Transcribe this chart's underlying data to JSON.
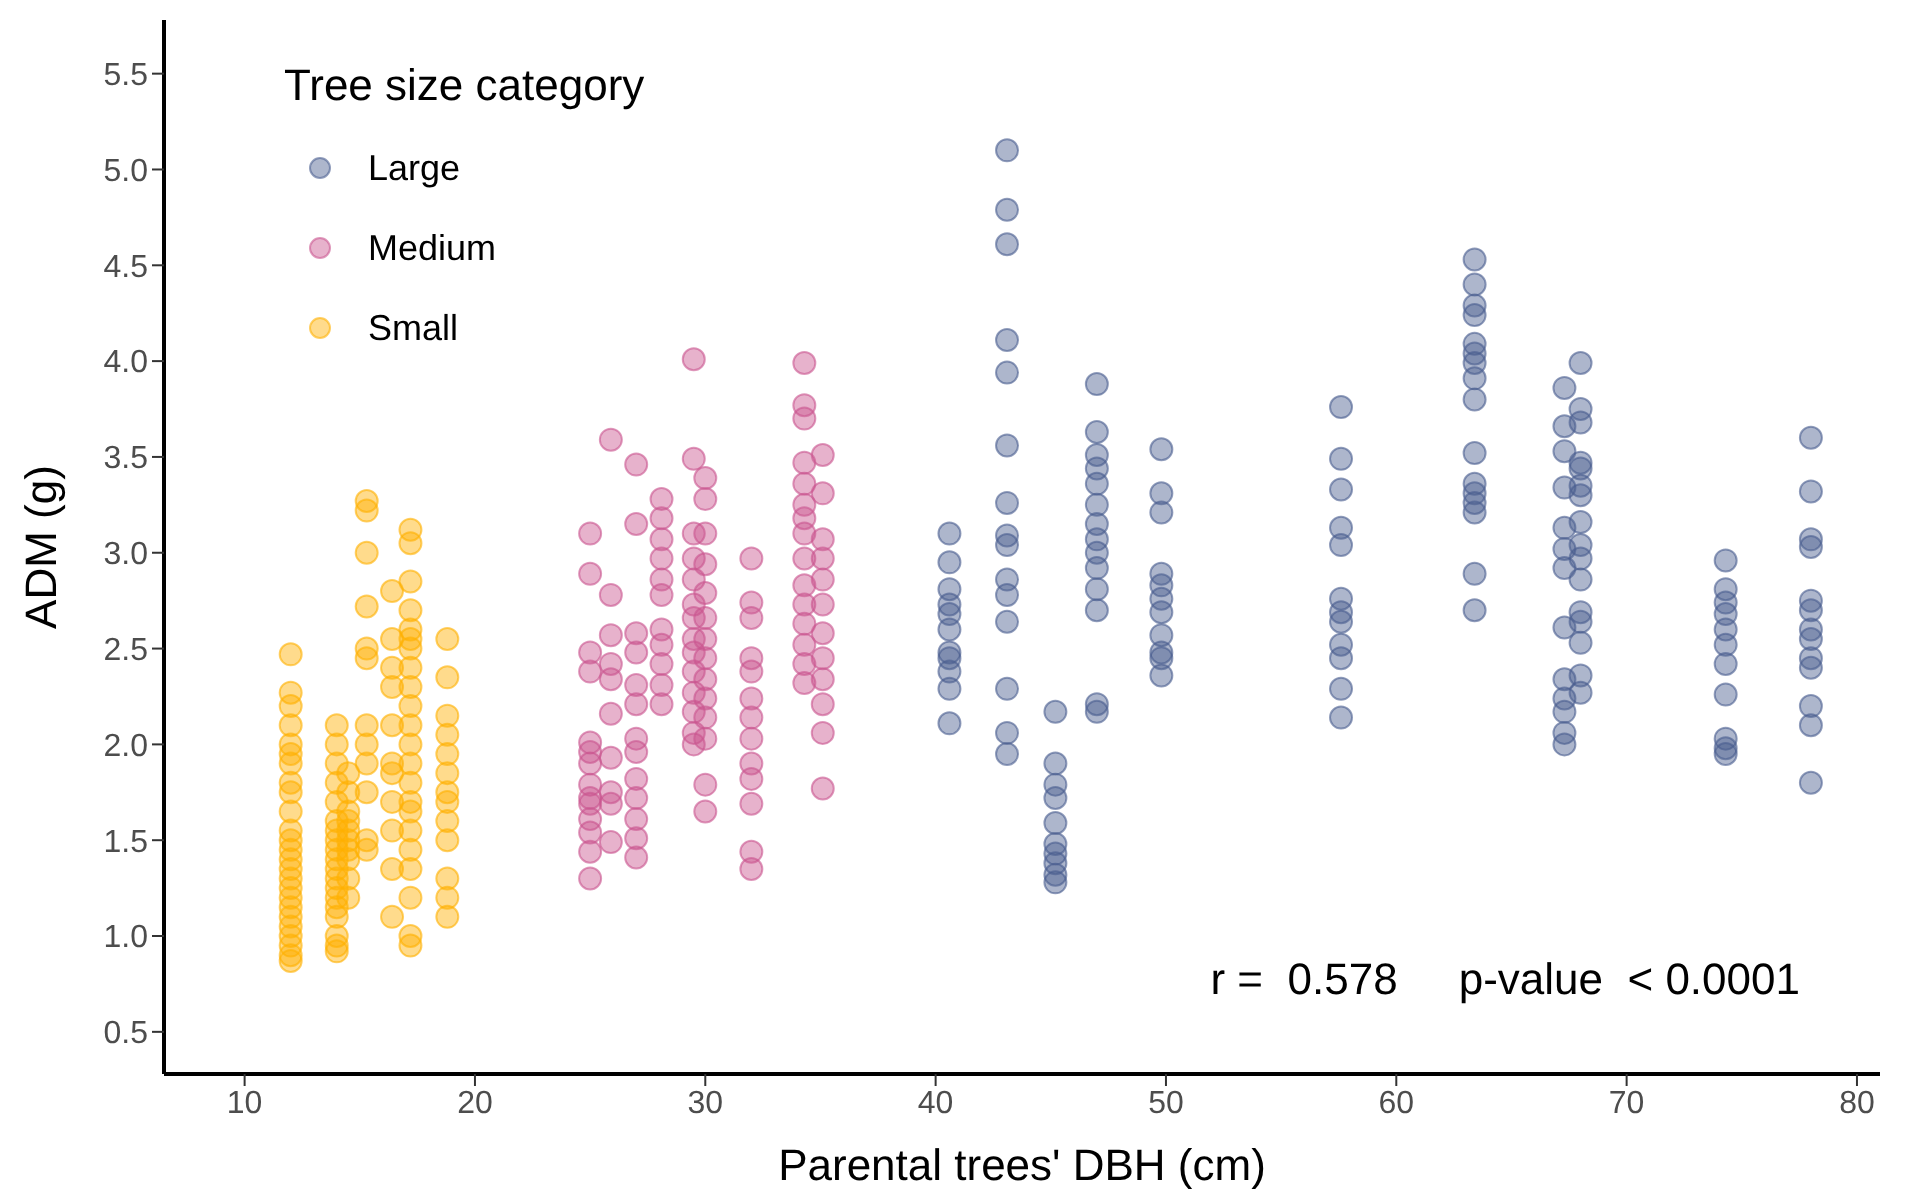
{
  "chart_data": {
    "type": "scatter",
    "xlabel": "Parental trees' DBH (cm)",
    "ylabel": "ADM (g)",
    "legend_title": "Tree size category",
    "legend": "top left",
    "grid": false,
    "marker": "circle",
    "xlim": [
      6.5,
      81
    ],
    "xticks": [
      10,
      20,
      30,
      40,
      50,
      60,
      70,
      80
    ],
    "ylim": [
      0.28,
      5.78
    ],
    "yticks": [
      0.5,
      {
        "value": 1,
        "label": "1.0"
      },
      1.5,
      {
        "value": 2,
        "label": "2.0"
      },
      2.5,
      {
        "value": 3,
        "label": "3.0"
      },
      3.5,
      {
        "value": 4,
        "label": "4.0"
      },
      4.5,
      {
        "value": 5,
        "label": "5.0"
      },
      5.5
    ],
    "annotations": [
      "r =  0.578     p-value  < 0.0001"
    ],
    "series": [
      {
        "name": "Large",
        "color": "#4a5d8f",
        "x": [
          40.6,
          40.6,
          40.6,
          40.6,
          40.6,
          40.6,
          40.6,
          40.6,
          40.6,
          40.6,
          40.6,
          43.1,
          43.1,
          43.1,
          43.1,
          43.1,
          43.1,
          43.1,
          43.1,
          43.1,
          43.1,
          43.1,
          43.1,
          43.1,
          43.1,
          43.1,
          45.2,
          45.2,
          45.2,
          45.2,
          45.2,
          45.2,
          45.2,
          45.2,
          45.2,
          45.2,
          47,
          47,
          47,
          47,
          47,
          47,
          47,
          47,
          47,
          47,
          47,
          47,
          47,
          47,
          49.8,
          49.8,
          49.8,
          49.8,
          49.8,
          49.8,
          49.8,
          49.8,
          49.8,
          49.8,
          49.8,
          57.6,
          57.6,
          57.6,
          57.6,
          57.6,
          57.6,
          57.6,
          57.6,
          57.6,
          57.6,
          57.6,
          57.6,
          63.4,
          63.4,
          63.4,
          63.4,
          63.4,
          63.4,
          63.4,
          63.4,
          63.4,
          63.4,
          63.4,
          63.4,
          63.4,
          63.4,
          63.4,
          63.4,
          67.3,
          67.3,
          67.3,
          67.3,
          67.3,
          67.3,
          67.3,
          67.3,
          67.3,
          67.3,
          67.3,
          67.3,
          67.3,
          68,
          68,
          68,
          68,
          68,
          68,
          68,
          68,
          68,
          68,
          68,
          68,
          68,
          68,
          68,
          68,
          74.3,
          74.3,
          74.3,
          74.3,
          74.3,
          74.3,
          74.3,
          74.3,
          74.3,
          74.3,
          74.3,
          78,
          78,
          78,
          78,
          78,
          78,
          78,
          78,
          78,
          78,
          78,
          78,
          78
        ],
        "values": [
          3.1,
          2.95,
          2.81,
          2.73,
          2.68,
          2.6,
          2.48,
          2.45,
          2.38,
          2.29,
          2.11,
          5.1,
          4.79,
          4.61,
          4.11,
          3.94,
          3.56,
          3.26,
          3.09,
          3.04,
          2.86,
          2.78,
          2.64,
          2.29,
          2.06,
          1.95,
          2.17,
          1.9,
          1.79,
          1.72,
          1.59,
          1.48,
          1.43,
          1.38,
          1.32,
          1.28,
          3.88,
          3.63,
          3.51,
          3.44,
          3.36,
          3.25,
          3.15,
          3.07,
          3.0,
          2.92,
          2.81,
          2.7,
          2.21,
          2.17,
          3.54,
          3.31,
          3.21,
          2.89,
          2.83,
          2.76,
          2.69,
          2.57,
          2.48,
          2.45,
          2.36,
          3.76,
          3.49,
          3.33,
          3.13,
          3.04,
          2.76,
          2.69,
          2.64,
          2.52,
          2.45,
          2.29,
          2.14,
          4.53,
          4.4,
          4.29,
          4.24,
          4.09,
          4.04,
          3.99,
          3.91,
          3.8,
          3.52,
          3.36,
          3.31,
          3.26,
          3.21,
          2.89,
          2.7,
          3.86,
          3.66,
          3.53,
          3.34,
          3.13,
          3.02,
          2.92,
          2.61,
          2.34,
          2.24,
          2.17,
          2.06,
          2.0,
          3.99,
          3.75,
          3.68,
          3.47,
          3.44,
          3.35,
          3.3,
          3.16,
          3.04,
          2.97,
          2.86,
          2.69,
          2.64,
          2.53,
          2.36,
          2.27,
          2.96,
          2.81,
          2.74,
          2.68,
          2.6,
          2.52,
          2.42,
          2.26,
          2.03,
          1.98,
          1.95,
          3.6,
          3.32,
          3.07,
          3.03,
          2.75,
          2.7,
          2.6,
          2.55,
          2.45,
          2.4,
          2.2,
          2.1,
          1.8
        ]
      },
      {
        "name": "Medium",
        "color": "#c9558f",
        "x": [
          25,
          25,
          25,
          25,
          25,
          25,
          25,
          25,
          25,
          25,
          25,
          25,
          25,
          25,
          25.9,
          25.9,
          25.9,
          25.9,
          25.9,
          25.9,
          25.9,
          25.9,
          25.9,
          25.9,
          27,
          27,
          27,
          27,
          27,
          27,
          27,
          27,
          27,
          27,
          27,
          27,
          27,
          28.1,
          28.1,
          28.1,
          28.1,
          28.1,
          28.1,
          28.1,
          28.1,
          28.1,
          28.1,
          28.1,
          29.5,
          29.5,
          29.5,
          29.5,
          29.5,
          29.5,
          29.5,
          29.5,
          29.5,
          29.5,
          29.5,
          29.5,
          29.5,
          29.5,
          30,
          30,
          30,
          30,
          30,
          30,
          30,
          30,
          30,
          30,
          30,
          30,
          30,
          30,
          32,
          32,
          32,
          32,
          32,
          32,
          32,
          32,
          32,
          32,
          32,
          32,
          32,
          34.3,
          34.3,
          34.3,
          34.3,
          34.3,
          34.3,
          34.3,
          34.3,
          34.3,
          34.3,
          34.3,
          34.3,
          34.3,
          34.3,
          34.3,
          35.1,
          35.1,
          35.1,
          35.1,
          35.1,
          35.1,
          35.1,
          35.1,
          35.1,
          35.1,
          35.1,
          35.1
        ],
        "values": [
          3.1,
          2.89,
          2.48,
          2.38,
          2.01,
          1.96,
          1.9,
          1.79,
          1.72,
          1.69,
          1.61,
          1.54,
          1.44,
          1.3,
          3.59,
          2.78,
          2.57,
          2.42,
          2.34,
          2.16,
          1.93,
          1.75,
          1.69,
          1.49,
          3.46,
          3.15,
          2.58,
          2.48,
          2.31,
          2.21,
          2.03,
          1.96,
          1.82,
          1.72,
          1.61,
          1.51,
          1.41,
          3.28,
          3.18,
          3.07,
          2.97,
          2.86,
          2.78,
          2.6,
          2.52,
          2.42,
          2.31,
          2.21,
          4.01,
          3.49,
          3.1,
          2.97,
          2.86,
          2.73,
          2.66,
          2.55,
          2.48,
          2.38,
          2.27,
          2.17,
          2.06,
          2.0,
          3.39,
          3.28,
          3.1,
          2.94,
          2.79,
          2.66,
          2.55,
          2.45,
          2.34,
          2.24,
          2.14,
          2.03,
          1.79,
          1.65,
          2.97,
          2.74,
          2.66,
          2.45,
          2.38,
          2.24,
          2.14,
          2.03,
          1.9,
          1.82,
          1.69,
          1.44,
          1.35,
          3.99,
          3.77,
          3.7,
          3.47,
          3.36,
          3.25,
          3.18,
          3.1,
          2.97,
          2.83,
          2.73,
          2.63,
          2.52,
          2.42,
          2.32,
          3.51,
          3.31,
          3.07,
          2.97,
          2.86,
          2.73,
          2.58,
          2.45,
          2.34,
          2.21,
          2.06,
          1.77
        ]
      },
      {
        "name": "Small",
        "color": "#ffb000",
        "x": [
          12,
          12,
          12,
          12,
          12,
          12,
          12,
          12,
          12,
          12,
          12,
          12,
          12,
          12,
          12,
          12,
          12,
          12,
          12,
          12,
          12,
          12,
          12,
          12,
          12,
          14,
          14,
          14,
          14,
          14,
          14,
          14,
          14,
          14,
          14,
          14,
          14,
          14,
          14,
          14,
          14,
          14,
          14,
          14,
          14.5,
          14.5,
          14.5,
          14.5,
          14.5,
          14.5,
          14.5,
          14.5,
          14.5,
          14.5,
          15.3,
          15.3,
          15.3,
          15.3,
          15.3,
          15.3,
          15.3,
          15.3,
          15.3,
          15.3,
          15.3,
          15.3,
          16.4,
          16.4,
          16.4,
          16.4,
          16.4,
          16.4,
          16.4,
          16.4,
          16.4,
          16.4,
          16.4,
          17.2,
          17.2,
          17.2,
          17.2,
          17.2,
          17.2,
          17.2,
          17.2,
          17.2,
          17.2,
          17.2,
          17.2,
          17.2,
          17.2,
          17.2,
          17.2,
          17.2,
          17.2,
          17.2,
          17.2,
          17.2,
          17.2,
          18.8,
          18.8,
          18.8,
          18.8,
          18.8,
          18.8,
          18.8,
          18.8,
          18.8,
          18.8,
          18.8,
          18.8,
          18.8
        ],
        "values": [
          2.47,
          2.27,
          2.2,
          2.1,
          2.0,
          1.95,
          1.9,
          1.8,
          1.75,
          1.65,
          1.55,
          1.5,
          1.45,
          1.4,
          1.35,
          1.3,
          1.25,
          1.2,
          1.15,
          1.1,
          1.05,
          1.0,
          0.95,
          0.9,
          0.87,
          2.1,
          2.0,
          1.9,
          1.8,
          1.7,
          1.6,
          1.55,
          1.5,
          1.45,
          1.4,
          1.35,
          1.3,
          1.25,
          1.2,
          1.15,
          1.1,
          1.0,
          0.95,
          0.92,
          1.85,
          1.75,
          1.65,
          1.6,
          1.55,
          1.5,
          1.45,
          1.4,
          1.3,
          1.2,
          3.27,
          3.22,
          3.0,
          2.72,
          2.5,
          2.45,
          2.1,
          2.0,
          1.9,
          1.75,
          1.5,
          1.45,
          2.8,
          2.55,
          2.4,
          2.3,
          2.1,
          1.9,
          1.85,
          1.7,
          1.55,
          1.35,
          1.1,
          3.12,
          3.05,
          2.85,
          2.7,
          2.6,
          2.55,
          2.5,
          2.4,
          2.3,
          2.2,
          2.1,
          2.0,
          1.9,
          1.8,
          1.7,
          1.65,
          1.55,
          1.45,
          1.35,
          1.2,
          1.0,
          0.95,
          2.55,
          2.35,
          2.15,
          2.05,
          1.95,
          1.85,
          1.75,
          1.7,
          1.6,
          1.5,
          1.3,
          1.2,
          1.1
        ]
      }
    ]
  }
}
